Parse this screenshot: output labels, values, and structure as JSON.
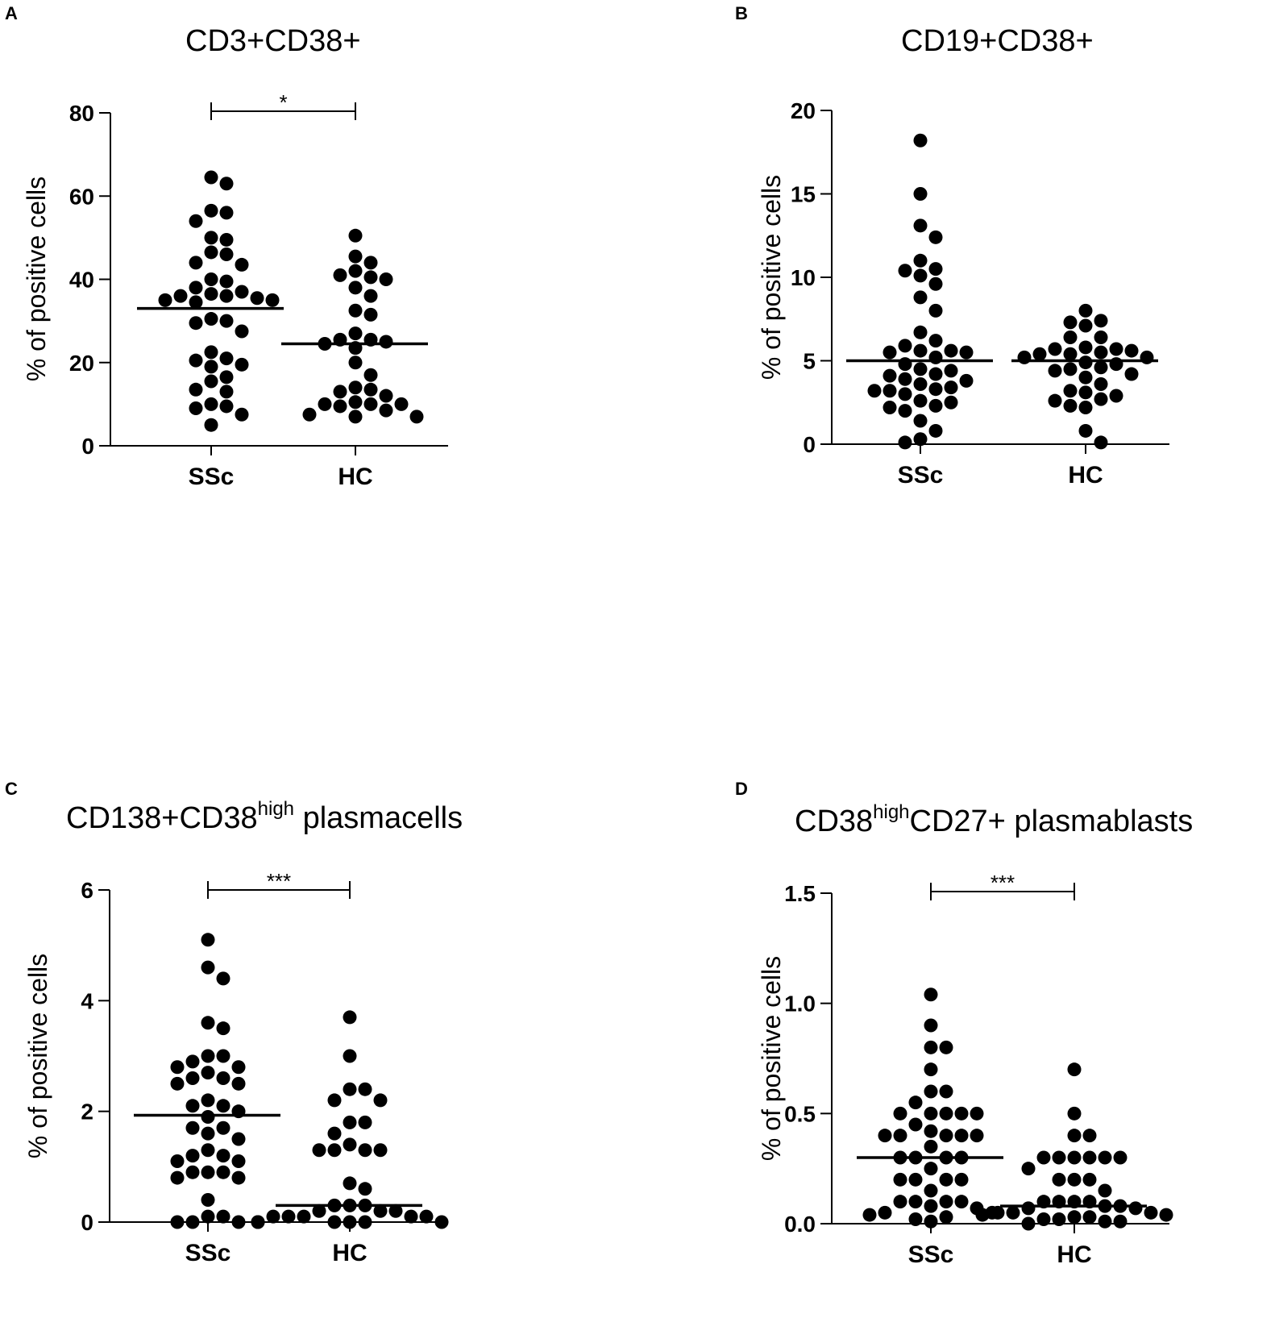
{
  "figure": {
    "background": "#ffffff",
    "ink": "#000000"
  },
  "chart_data": [
    {
      "panel": "A",
      "type": "scatter",
      "title": "CD3+CD38+",
      "title_sup": "",
      "title_suffix": "",
      "xlabel": "",
      "ylabel": "% of positive cells",
      "categories": [
        "SSc",
        "HC"
      ],
      "ylim": [
        0,
        80
      ],
      "yticks": [
        0,
        20,
        40,
        60,
        80
      ],
      "tick_labels": [
        "0",
        "20",
        "40",
        "60",
        "80"
      ],
      "medians": [
        33,
        24.5
      ],
      "significance": "*",
      "series": [
        {
          "name": "SSc",
          "values": [
            64.5,
            63,
            56.5,
            56,
            54,
            50,
            49.5,
            46.5,
            46,
            44,
            43.5,
            40,
            39.5,
            38,
            37,
            36.5,
            36,
            36,
            35.5,
            35,
            35,
            34.5,
            30.5,
            30,
            29.5,
            27.5,
            22.5,
            21,
            20.5,
            19.5,
            19,
            16.5,
            15.5,
            13.5,
            13,
            10,
            9.5,
            9,
            7.5,
            5
          ]
        },
        {
          "name": "HC",
          "values": [
            50.5,
            45.5,
            44,
            42,
            41,
            40.5,
            40,
            38,
            36,
            32.5,
            31.5,
            27,
            25.5,
            25.5,
            25,
            24.5,
            23.5,
            20,
            17,
            14,
            13.5,
            13,
            12,
            10.5,
            10,
            10,
            10,
            9.5,
            8.5,
            7.5,
            7,
            7
          ]
        }
      ]
    },
    {
      "panel": "B",
      "type": "scatter",
      "title": "CD19+CD38+",
      "title_sup": "",
      "title_suffix": "",
      "xlabel": "",
      "ylabel": "% of positive cells",
      "categories": [
        "SSc",
        "HC"
      ],
      "ylim": [
        0,
        20
      ],
      "yticks": [
        0,
        5,
        10,
        15,
        20
      ],
      "tick_labels": [
        "0",
        "5",
        "10",
        "15",
        "20"
      ],
      "medians": [
        5,
        5
      ],
      "significance": "",
      "series": [
        {
          "name": "SSc",
          "values": [
            18.2,
            15,
            13.1,
            12.4,
            11,
            10.5,
            10.4,
            10.1,
            9.6,
            8.8,
            8,
            6.7,
            6.2,
            5.9,
            5.6,
            5.6,
            5.5,
            5.5,
            5.2,
            4.8,
            4.5,
            4.4,
            4.2,
            4.1,
            3.9,
            3.8,
            3.6,
            3.4,
            3.3,
            3.2,
            3.2,
            3,
            2.6,
            2.5,
            2.3,
            2.2,
            2,
            1.4,
            0.8,
            0.3,
            0.1
          ]
        },
        {
          "name": "HC",
          "values": [
            8,
            7.4,
            7.3,
            7.1,
            6.4,
            6.4,
            5.8,
            5.7,
            5.7,
            5.6,
            5.5,
            5.4,
            5.4,
            5.2,
            5.2,
            4.9,
            4.8,
            4.6,
            4.5,
            4.4,
            4.2,
            4,
            3.6,
            3.2,
            3.1,
            2.9,
            2.7,
            2.6,
            2.3,
            2.2,
            0.8,
            0.1
          ]
        }
      ]
    },
    {
      "panel": "C",
      "type": "scatter",
      "title": "CD138+CD38",
      "title_sup": "high",
      "title_suffix": "plasmacells",
      "xlabel": "",
      "ylabel": "% of positive cells",
      "categories": [
        "SSc",
        "HC"
      ],
      "ylim": [
        0,
        6
      ],
      "yticks": [
        0,
        2,
        4,
        6
      ],
      "tick_labels": [
        "0",
        "2",
        "4",
        "6"
      ],
      "medians": [
        1.93,
        0.3
      ],
      "significance": "***",
      "series": [
        {
          "name": "SSc",
          "values": [
            5.1,
            4.6,
            4.4,
            3.6,
            3.5,
            3,
            3,
            2.9,
            2.8,
            2.8,
            2.7,
            2.6,
            2.6,
            2.5,
            2.5,
            2.2,
            2.1,
            2.1,
            2,
            1.9,
            1.7,
            1.7,
            1.6,
            1.5,
            1.3,
            1.2,
            1.2,
            1.1,
            1.1,
            0.9,
            0.9,
            0.9,
            0.8,
            0.8,
            0.4,
            0.1,
            0.1,
            0,
            0,
            0
          ]
        },
        {
          "name": "HC",
          "values": [
            3.7,
            3,
            2.4,
            2.4,
            2.2,
            2.2,
            1.8,
            1.8,
            1.6,
            1.4,
            1.3,
            1.3,
            1.3,
            1.3,
            0.7,
            0.6,
            0.3,
            0.3,
            0.3,
            0.2,
            0.2,
            0.2,
            0.1,
            0.1,
            0.1,
            0.1,
            0.1,
            0,
            0,
            0,
            0,
            0,
            0,
            0
          ]
        }
      ]
    },
    {
      "panel": "D",
      "type": "scatter",
      "title": "CD38",
      "title_sup": "high",
      "title_suffix": "CD27+ plasmablasts",
      "xlabel": "",
      "ylabel": "% of positive cells",
      "categories": [
        "SSc",
        "HC"
      ],
      "ylim": [
        0,
        1.5
      ],
      "yticks": [
        0,
        0.5,
        1.0,
        1.5
      ],
      "tick_labels": [
        "0.0",
        "0.5",
        "1.0",
        "1.5"
      ],
      "medians": [
        0.3,
        0.08
      ],
      "significance": "***",
      "series": [
        {
          "name": "SSc",
          "values": [
            1.04,
            0.9,
            0.8,
            0.8,
            0.7,
            0.6,
            0.6,
            0.55,
            0.5,
            0.5,
            0.5,
            0.5,
            0.5,
            0.45,
            0.42,
            0.4,
            0.4,
            0.4,
            0.4,
            0.4,
            0.35,
            0.3,
            0.3,
            0.3,
            0.3,
            0.25,
            0.2,
            0.2,
            0.2,
            0.2,
            0.15,
            0.1,
            0.1,
            0.1,
            0.1,
            0.08,
            0.07,
            0.05,
            0.05,
            0.04,
            0.03,
            0.02,
            0.01
          ]
        },
        {
          "name": "HC",
          "values": [
            0.7,
            0.5,
            0.4,
            0.4,
            0.3,
            0.3,
            0.3,
            0.3,
            0.3,
            0.3,
            0.25,
            0.2,
            0.2,
            0.2,
            0.15,
            0.1,
            0.1,
            0.1,
            0.1,
            0.08,
            0.08,
            0.07,
            0.07,
            0.05,
            0.05,
            0.05,
            0.04,
            0.04,
            0.03,
            0.03,
            0.02,
            0.02,
            0.01,
            0.01,
            0
          ]
        }
      ]
    }
  ]
}
